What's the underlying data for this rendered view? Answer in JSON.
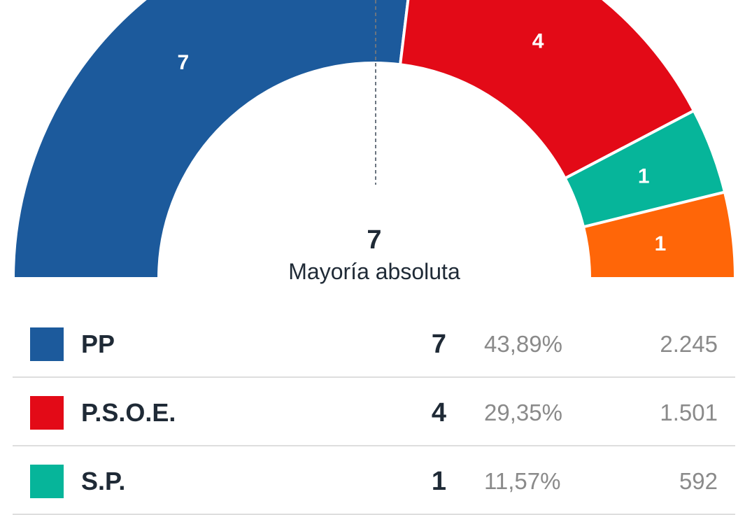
{
  "chart_data": {
    "type": "parliament-semicircle",
    "total_seats": 13,
    "majority": {
      "value": "7",
      "label": "Mayoría absoluta"
    },
    "parties": [
      {
        "name": "PP",
        "seats": 7,
        "seats_label": "7",
        "percent": "43,89%",
        "votes": "2.245",
        "color": "#1c5a9c"
      },
      {
        "name": "P.S.O.E.",
        "seats": 4,
        "seats_label": "4",
        "percent": "29,35%",
        "votes": "1.501",
        "color": "#e30a17"
      },
      {
        "name": "S.P.",
        "seats": 1,
        "seats_label": "1",
        "percent": "11,57%",
        "votes": "592",
        "color": "#06b59a"
      },
      {
        "name": "",
        "seats": 1,
        "seats_label": "1",
        "percent": "",
        "votes": "",
        "color": "#ff6608"
      }
    ]
  }
}
